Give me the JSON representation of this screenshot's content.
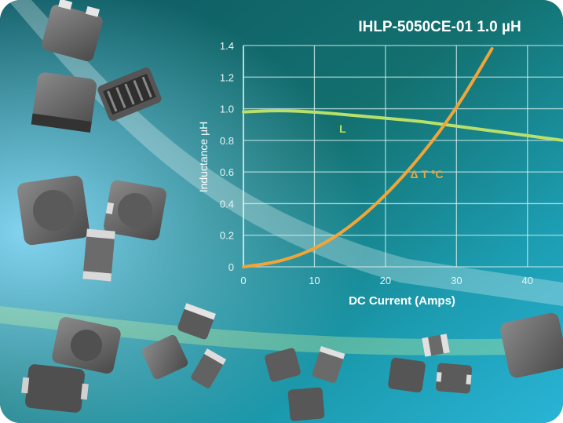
{
  "chart_data": {
    "type": "line",
    "title": "IHLP-5050CE-01 1.0 µH",
    "xlabel": "DC Current (Amps)",
    "ylabel": "Inductance µH",
    "xlim": [
      0,
      45
    ],
    "ylim": [
      0,
      1.4
    ],
    "x_ticks": [
      "0",
      "10",
      "20",
      "30",
      "40"
    ],
    "y_ticks": [
      "0",
      "0.2",
      "0.4",
      "0.6",
      "0.8",
      "1.0",
      "1.2",
      "1.4"
    ],
    "grid": true,
    "series": [
      {
        "name": "L",
        "color": "#b8e06a",
        "x": [
          0,
          5,
          10,
          15,
          20,
          25,
          30,
          35,
          40,
          45
        ],
        "y": [
          0.98,
          0.99,
          0.98,
          0.96,
          0.94,
          0.92,
          0.89,
          0.86,
          0.83,
          0.8
        ]
      },
      {
        "name": "Δ T °C",
        "color": "#f2a536",
        "x": [
          0,
          5,
          10,
          15,
          20,
          25,
          30,
          35
        ],
        "y": [
          0.0,
          0.03,
          0.11,
          0.25,
          0.45,
          0.7,
          1.0,
          1.38
        ]
      }
    ]
  }
}
